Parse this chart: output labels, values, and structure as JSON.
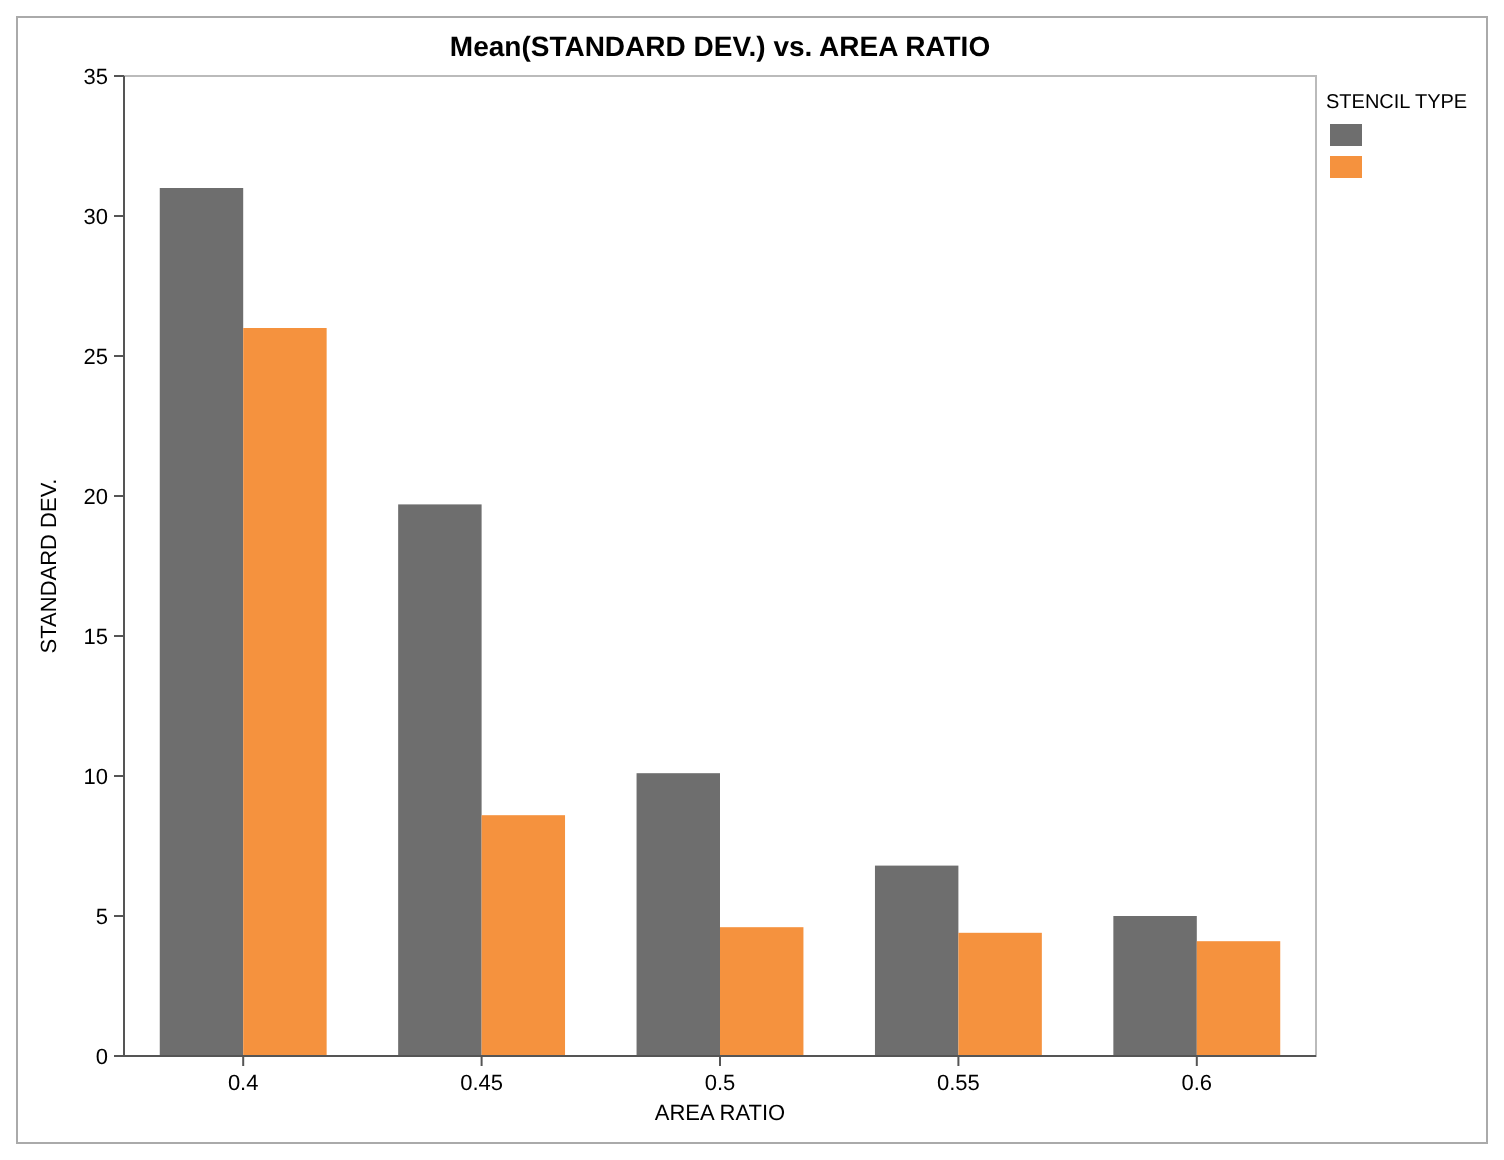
{
  "chart_data": {
    "type": "bar",
    "title": "Mean(STANDARD DEV.) vs. AREA RATIO",
    "xlabel": "AREA RATIO",
    "ylabel": "STANDARD DEV.",
    "legend_title": "STENCIL TYPE",
    "categories": [
      "0.4",
      "0.45",
      "0.5",
      "0.55",
      "0.6"
    ],
    "series": [
      {
        "color": "#6e6e6e",
        "values": [
          31,
          19.7,
          10.1,
          6.8,
          5.0
        ]
      },
      {
        "color": "#f5923e",
        "values": [
          26,
          8.6,
          4.6,
          4.4,
          4.1
        ]
      }
    ],
    "ylim": [
      0,
      35
    ],
    "yticks": [
      0,
      5,
      10,
      15,
      20,
      25,
      30,
      35
    ],
    "grid": false
  }
}
